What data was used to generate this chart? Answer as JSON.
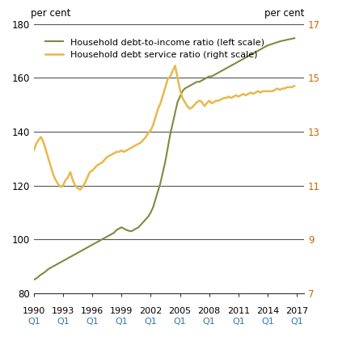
{
  "ylabel_left": "per cent",
  "ylabel_right": "per cent",
  "ylim_left": [
    80,
    180
  ],
  "ylim_right": [
    7,
    17
  ],
  "yticks_left": [
    80,
    100,
    120,
    140,
    160,
    180
  ],
  "yticks_right": [
    7,
    9,
    11,
    13,
    15,
    17
  ],
  "xtick_years": [
    1990,
    1993,
    1996,
    1999,
    2002,
    2005,
    2008,
    2011,
    2014,
    2017
  ],
  "line1_color": "#7a8c3e",
  "line2_color": "#e8b84b",
  "line1_label": "Household debt-to-income ratio (left scale)",
  "line2_label": "Household debt service ratio (right scale)",
  "background_color": "#ffffff",
  "grid_color_dark": "#555555",
  "grid_color_light": "#aaaaaa",
  "right_axis_color": "#cc6600",
  "xtick_label_color": "#3377aa",
  "debt_to_income": [
    85.0,
    85.5,
    86.2,
    87.0,
    87.5,
    88.2,
    89.0,
    89.5,
    90.0,
    90.5,
    91.0,
    91.5,
    92.0,
    92.5,
    93.0,
    93.5,
    94.0,
    94.5,
    95.0,
    95.5,
    96.0,
    96.5,
    97.0,
    97.5,
    98.0,
    98.5,
    99.0,
    99.5,
    100.0,
    100.5,
    101.0,
    101.5,
    102.0,
    102.5,
    103.5,
    104.0,
    104.5,
    104.0,
    103.5,
    103.2,
    103.0,
    103.5,
    104.0,
    104.5,
    105.5,
    106.5,
    107.5,
    108.5,
    110.0,
    112.0,
    115.0,
    118.0,
    121.0,
    125.0,
    129.0,
    134.0,
    139.0,
    143.0,
    147.0,
    151.0,
    153.0,
    155.0,
    156.0,
    156.5,
    157.0,
    157.5,
    158.0,
    158.5,
    158.5,
    159.0,
    159.5,
    160.0,
    160.5,
    160.5,
    161.0,
    161.5,
    162.0,
    162.5,
    163.0,
    163.5,
    164.0,
    164.5,
    165.0,
    165.5,
    166.0,
    166.5,
    167.0,
    167.5,
    168.0,
    168.5,
    169.0,
    169.5,
    170.0,
    170.5,
    171.0,
    171.5,
    172.0,
    172.3,
    172.6,
    172.9,
    173.2,
    173.5,
    173.7,
    173.9,
    174.1,
    174.3,
    174.5,
    174.7
  ],
  "debt_service": [
    12.3,
    12.55,
    12.7,
    12.8,
    12.6,
    12.3,
    12.0,
    11.7,
    11.4,
    11.2,
    11.05,
    10.95,
    11.0,
    11.2,
    11.3,
    11.5,
    11.2,
    11.0,
    10.9,
    10.85,
    10.95,
    11.1,
    11.3,
    11.5,
    11.55,
    11.65,
    11.75,
    11.8,
    11.85,
    11.95,
    12.05,
    12.1,
    12.15,
    12.2,
    12.25,
    12.25,
    12.3,
    12.25,
    12.3,
    12.35,
    12.4,
    12.45,
    12.5,
    12.55,
    12.6,
    12.7,
    12.8,
    12.95,
    13.05,
    13.25,
    13.55,
    13.85,
    14.05,
    14.35,
    14.65,
    14.95,
    15.05,
    15.25,
    15.45,
    15.0,
    14.55,
    14.25,
    14.1,
    13.95,
    13.85,
    13.9,
    14.0,
    14.1,
    14.15,
    14.1,
    13.95,
    14.05,
    14.15,
    14.05,
    14.1,
    14.15,
    14.15,
    14.2,
    14.25,
    14.25,
    14.3,
    14.25,
    14.3,
    14.35,
    14.3,
    14.35,
    14.4,
    14.35,
    14.4,
    14.45,
    14.4,
    14.45,
    14.5,
    14.45,
    14.5,
    14.5,
    14.5,
    14.5,
    14.5,
    14.55,
    14.6,
    14.55,
    14.6,
    14.6,
    14.65,
    14.65,
    14.65,
    14.7
  ],
  "start_year": 1990,
  "n_quarters": 108
}
